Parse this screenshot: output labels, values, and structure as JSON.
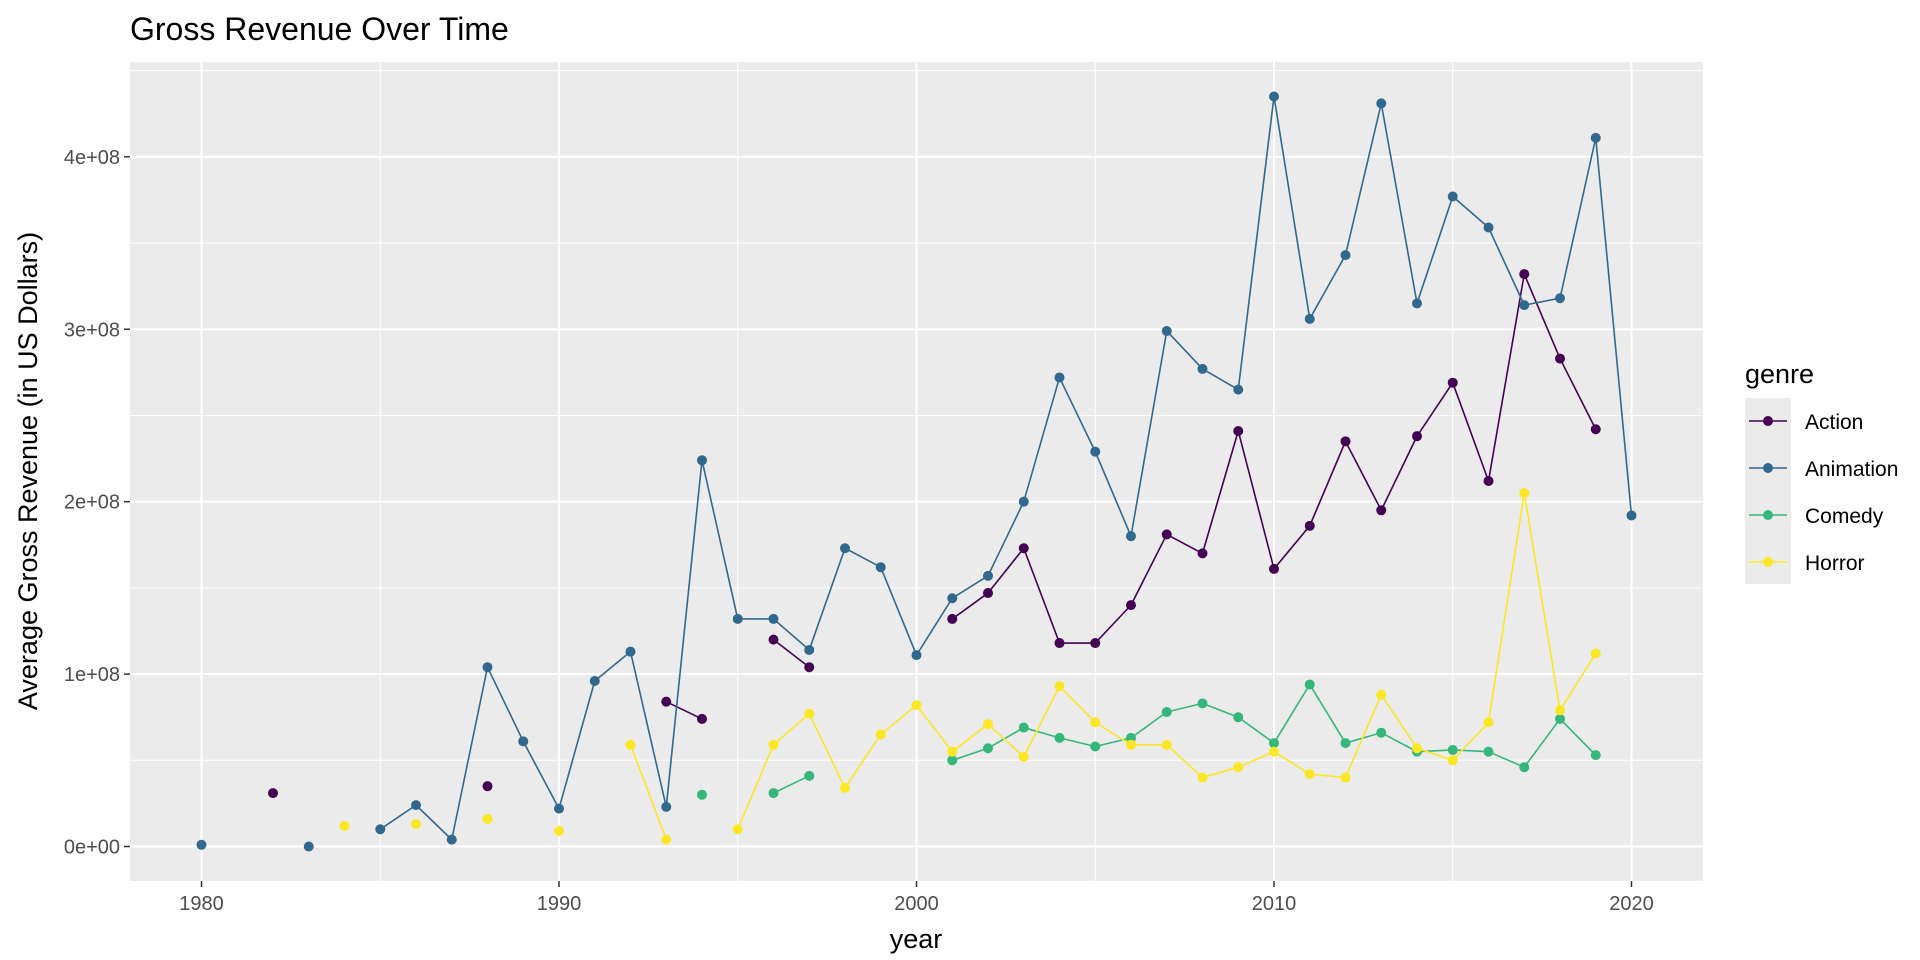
{
  "chart_data": {
    "type": "line",
    "title": "Gross Revenue Over Time",
    "xlabel": "year",
    "ylabel": "Average Gross Revenue (in US Dollars)",
    "xlim": [
      1978,
      2022
    ],
    "ylim": [
      -20000000,
      455000000
    ],
    "x_ticks": [
      1980,
      1990,
      2000,
      2010,
      2020
    ],
    "x_tick_labels": [
      "1980",
      "1990",
      "2000",
      "2010",
      "2020"
    ],
    "y_ticks": [
      0,
      100000000,
      200000000,
      300000000,
      400000000
    ],
    "y_tick_labels": [
      "0e+00",
      "1e+08",
      "2e+08",
      "3e+08",
      "4e+08"
    ],
    "grid": true,
    "legend": {
      "title": "genre",
      "position": "right"
    },
    "series": [
      {
        "name": "Action",
        "color": "#440154",
        "points": [
          [
            1982,
            31000000
          ],
          [
            1988,
            35000000
          ],
          [
            1993,
            84000000
          ],
          [
            1994,
            74000000
          ],
          [
            1996,
            120000000
          ],
          [
            1997,
            104000000
          ],
          [
            2001,
            132000000
          ],
          [
            2002,
            147000000
          ],
          [
            2003,
            173000000
          ],
          [
            2004,
            118000000
          ],
          [
            2005,
            118000000
          ],
          [
            2006,
            140000000
          ],
          [
            2007,
            181000000
          ],
          [
            2008,
            170000000
          ],
          [
            2009,
            241000000
          ],
          [
            2010,
            161000000
          ],
          [
            2011,
            186000000
          ],
          [
            2012,
            235000000
          ],
          [
            2013,
            195000000
          ],
          [
            2014,
            238000000
          ],
          [
            2015,
            269000000
          ],
          [
            2016,
            212000000
          ],
          [
            2017,
            332000000
          ],
          [
            2018,
            283000000
          ],
          [
            2019,
            242000000
          ]
        ]
      },
      {
        "name": "Animation",
        "color": "#31688E",
        "points": [
          [
            1980,
            1000000
          ],
          [
            1983,
            0
          ],
          [
            1985,
            10000000
          ],
          [
            1986,
            24000000
          ],
          [
            1987,
            4000000
          ],
          [
            1988,
            104000000
          ],
          [
            1989,
            61000000
          ],
          [
            1990,
            22000000
          ],
          [
            1991,
            96000000
          ],
          [
            1992,
            113000000
          ],
          [
            1993,
            23000000
          ],
          [
            1994,
            224000000
          ],
          [
            1995,
            132000000
          ],
          [
            1996,
            132000000
          ],
          [
            1997,
            114000000
          ],
          [
            1998,
            173000000
          ],
          [
            1999,
            162000000
          ],
          [
            2000,
            111000000
          ],
          [
            2001,
            144000000
          ],
          [
            2002,
            157000000
          ],
          [
            2003,
            200000000
          ],
          [
            2004,
            272000000
          ],
          [
            2005,
            229000000
          ],
          [
            2006,
            180000000
          ],
          [
            2007,
            299000000
          ],
          [
            2008,
            277000000
          ],
          [
            2009,
            265000000
          ],
          [
            2010,
            435000000
          ],
          [
            2011,
            306000000
          ],
          [
            2012,
            343000000
          ],
          [
            2013,
            431000000
          ],
          [
            2014,
            315000000
          ],
          [
            2015,
            377000000
          ],
          [
            2016,
            359000000
          ],
          [
            2017,
            314000000
          ],
          [
            2018,
            318000000
          ],
          [
            2019,
            411000000
          ],
          [
            2020,
            192000000
          ]
        ]
      },
      {
        "name": "Comedy",
        "color": "#35B779",
        "points": [
          [
            1994,
            30000000
          ],
          [
            1996,
            31000000
          ],
          [
            1997,
            41000000
          ],
          [
            2001,
            50000000
          ],
          [
            2002,
            57000000
          ],
          [
            2003,
            69000000
          ],
          [
            2004,
            63000000
          ],
          [
            2005,
            58000000
          ],
          [
            2006,
            63000000
          ],
          [
            2007,
            78000000
          ],
          [
            2008,
            83000000
          ],
          [
            2009,
            75000000
          ],
          [
            2010,
            60000000
          ],
          [
            2011,
            94000000
          ],
          [
            2012,
            60000000
          ],
          [
            2013,
            66000000
          ],
          [
            2014,
            55000000
          ],
          [
            2015,
            56000000
          ],
          [
            2016,
            55000000
          ],
          [
            2017,
            46000000
          ],
          [
            2018,
            74000000
          ],
          [
            2019,
            53000000
          ]
        ]
      },
      {
        "name": "Horror",
        "color": "#FDE725",
        "points": [
          [
            1984,
            12000000
          ],
          [
            1986,
            13000000
          ],
          [
            1988,
            16000000
          ],
          [
            1990,
            9000000
          ],
          [
            1992,
            59000000
          ],
          [
            1993,
            4000000
          ],
          [
            1995,
            10000000
          ],
          [
            1996,
            59000000
          ],
          [
            1997,
            77000000
          ],
          [
            1998,
            34000000
          ],
          [
            1999,
            65000000
          ],
          [
            2000,
            82000000
          ],
          [
            2001,
            55000000
          ],
          [
            2002,
            71000000
          ],
          [
            2003,
            52000000
          ],
          [
            2004,
            93000000
          ],
          [
            2005,
            72000000
          ],
          [
            2006,
            59000000
          ],
          [
            2007,
            59000000
          ],
          [
            2008,
            40000000
          ],
          [
            2009,
            46000000
          ],
          [
            2010,
            55000000
          ],
          [
            2011,
            42000000
          ],
          [
            2012,
            40000000
          ],
          [
            2013,
            88000000
          ],
          [
            2014,
            57000000
          ],
          [
            2015,
            50000000
          ],
          [
            2016,
            72000000
          ],
          [
            2017,
            205000000
          ],
          [
            2018,
            79000000
          ],
          [
            2019,
            112000000
          ]
        ]
      }
    ]
  }
}
